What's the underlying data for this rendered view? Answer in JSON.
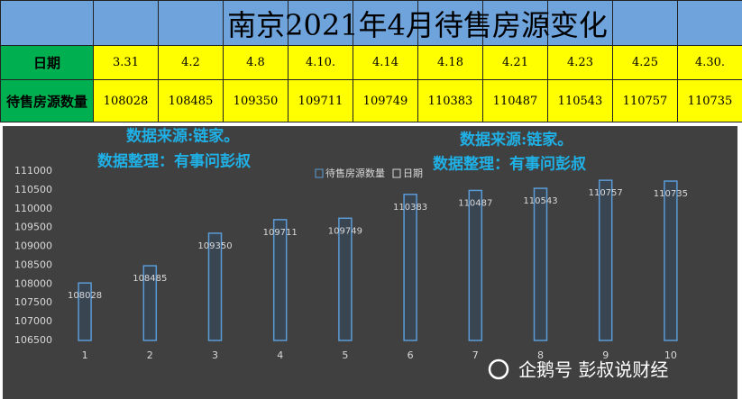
{
  "table": {
    "title": "南京2021年4月待售房源变化",
    "rows": [
      [
        "日期",
        "3.31",
        "4.2",
        "4.8",
        "4.10.",
        "4.14",
        "4.18",
        "4.21",
        "4.23",
        "4.25",
        "4.30."
      ],
      [
        "待售房源数量",
        "108028",
        "108485",
        "109350",
        "109711",
        "109749",
        "110383",
        "110487",
        "110543",
        "110757",
        "110735"
      ]
    ]
  },
  "chart_data": {
    "type": "bar",
    "annotations": [
      "数据来源:链家。",
      "数据整理：有事问彭叔",
      "数据来源:链家。",
      "数据整理：有事问彭叔"
    ],
    "categories": [
      "1",
      "2",
      "3",
      "4",
      "5",
      "6",
      "7",
      "8",
      "9",
      "10"
    ],
    "series": [
      {
        "name": "待售房源数量",
        "color": "#5b9bd5",
        "values": [
          108028,
          108485,
          109350,
          109711,
          109749,
          110383,
          110487,
          110543,
          110757,
          110735
        ]
      },
      {
        "name": "日期",
        "color": "#d9d9d9",
        "values": [
          null,
          null,
          null,
          null,
          null,
          null,
          null,
          null,
          null,
          null
        ]
      }
    ],
    "ylim": [
      106500,
      111000
    ],
    "yticks": [
      106500,
      107000,
      107500,
      108000,
      108500,
      109000,
      109500,
      110000,
      110500,
      111000
    ],
    "grid": false
  },
  "watermark": "企鹅号 彭叔说财经"
}
